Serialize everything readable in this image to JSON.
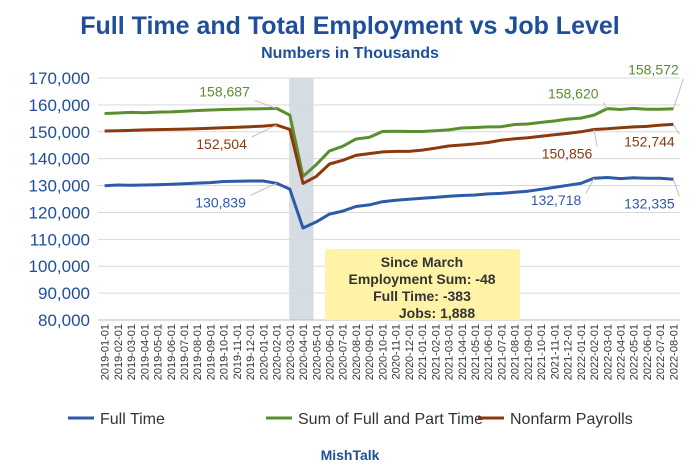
{
  "chart_data": {
    "type": "line",
    "title": "Full Time and Total Employment vs Job Level",
    "subtitle": "Numbers in Thousands",
    "ylim": [
      80000,
      170000
    ],
    "yticks": [
      80000,
      90000,
      100000,
      110000,
      120000,
      130000,
      140000,
      150000,
      160000,
      170000
    ],
    "ytick_labels": [
      "80,000",
      "90,000",
      "100,000",
      "110,000",
      "120,000",
      "130,000",
      "140,000",
      "150,000",
      "160,000",
      "170,000"
    ],
    "grid": "horizontal",
    "legend_position": "bottom",
    "x": [
      "2019-01-01",
      "2019-02-01",
      "2019-03-01",
      "2019-04-01",
      "2019-05-01",
      "2019-06-01",
      "2019-07-01",
      "2019-08-01",
      "2019-09-01",
      "2019-10-01",
      "2019-11-01",
      "2019-12-01",
      "2020-01-01",
      "2020-02-01",
      "2020-03-01",
      "2020-04-01",
      "2020-05-01",
      "2020-06-01",
      "2020-07-01",
      "2020-08-01",
      "2020-09-01",
      "2020-10-01",
      "2020-11-01",
      "2020-12-01",
      "2021-01-01",
      "2021-02-01",
      "2021-03-01",
      "2021-04-01",
      "2021-05-01",
      "2021-06-01",
      "2021-07-01",
      "2021-08-01",
      "2021-09-01",
      "2021-10-01",
      "2021-11-01",
      "2021-12-01",
      "2022-01-01",
      "2022-02-01",
      "2022-03-01",
      "2022-04-01",
      "2022-05-01",
      "2022-06-01",
      "2022-07-01",
      "2022-08-01"
    ],
    "shaded_region": {
      "from": "2020-03-01",
      "to": "2020-04-01",
      "color": "#d6dce4"
    },
    "series": [
      {
        "name": "Sum of Full and Part Time",
        "color": "#5a8f2e",
        "values": [
          156800,
          157000,
          157200,
          157100,
          157300,
          157400,
          157600,
          157900,
          158100,
          158300,
          158400,
          158500,
          158600,
          158687,
          156200,
          133400,
          137800,
          142900,
          144600,
          147300,
          147900,
          150100,
          150200,
          150100,
          150100,
          150400,
          150700,
          151400,
          151600,
          151800,
          151900,
          152700,
          152900,
          153500,
          154000,
          154700,
          155100,
          156200,
          158620,
          158300,
          158700,
          158400,
          158400,
          158572
        ]
      },
      {
        "name": "Nonfarm Payrolls",
        "color": "#8b3a0e",
        "values": [
          150300,
          150400,
          150500,
          150700,
          150800,
          150900,
          151000,
          151100,
          151300,
          151500,
          151700,
          151900,
          152100,
          152504,
          150900,
          130800,
          133400,
          138000,
          139400,
          141200,
          141900,
          142500,
          142700,
          142700,
          143200,
          143900,
          144700,
          145100,
          145500,
          146000,
          146900,
          147400,
          147800,
          148300,
          148900,
          149400,
          150000,
          150856,
          151100,
          151500,
          151800,
          152000,
          152500,
          152744
        ]
      },
      {
        "name": "Full Time",
        "color": "#2e5aa8",
        "values": [
          129900,
          130200,
          130100,
          130200,
          130300,
          130500,
          130700,
          130900,
          131100,
          131500,
          131600,
          131700,
          131700,
          130839,
          128700,
          114200,
          116500,
          119400,
          120500,
          122200,
          122800,
          124000,
          124500,
          124900,
          125300,
          125600,
          126000,
          126300,
          126500,
          126900,
          127100,
          127500,
          127900,
          128600,
          129300,
          130100,
          130800,
          132718,
          133000,
          132600,
          132900,
          132700,
          132700,
          132335
        ]
      }
    ],
    "annotations": [
      {
        "text": "158,687",
        "series": "Sum of Full and Part Time",
        "x": "2020-02-01",
        "y": 158687,
        "color": "#5a8f2e"
      },
      {
        "text": "158,620",
        "series": "Sum of Full and Part Time",
        "x": "2022-03-01",
        "y": 158620,
        "color": "#5a8f2e"
      },
      {
        "text": "158,572",
        "series": "Sum of Full and Part Time",
        "x": "2022-08-01",
        "y": 158572,
        "color": "#5a8f2e"
      },
      {
        "text": "152,504",
        "series": "Nonfarm Payrolls",
        "x": "2020-02-01",
        "y": 152504,
        "color": "#8b3a0e"
      },
      {
        "text": "150,856",
        "series": "Nonfarm Payrolls",
        "x": "2022-02-01",
        "y": 150856,
        "color": "#8b3a0e"
      },
      {
        "text": "152,744",
        "series": "Nonfarm Payrolls",
        "x": "2022-08-01",
        "y": 152744,
        "color": "#8b3a0e"
      },
      {
        "text": "130,839",
        "series": "Full Time",
        "x": "2020-02-01",
        "y": 130839,
        "color": "#2e5aa8"
      },
      {
        "text": "132,718",
        "series": "Full Time",
        "x": "2022-02-01",
        "y": 132718,
        "color": "#2e5aa8"
      },
      {
        "text": "132,335",
        "series": "Full Time",
        "x": "2022-08-01",
        "y": 132335,
        "color": "#2e5aa8"
      }
    ],
    "text_box": {
      "lines": [
        "Since March",
        "Employment Sum: -48",
        "Full Time: -383",
        "Jobs: 1,888"
      ],
      "background": "#fff3a8"
    }
  },
  "credit": "MishTalk"
}
